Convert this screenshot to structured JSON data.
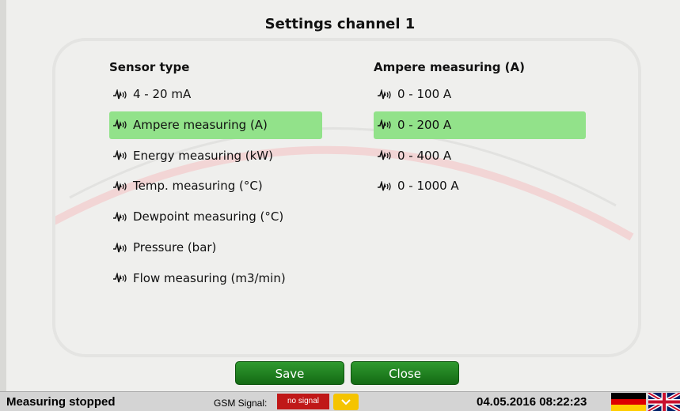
{
  "dialog": {
    "title": "Settings channel 1",
    "sensor_type": {
      "header": "Sensor type",
      "items": [
        {
          "label": "4 - 20 mA",
          "selected": false
        },
        {
          "label": "Ampere measuring (A)",
          "selected": true
        },
        {
          "label": "Energy measuring (kW)",
          "selected": false
        },
        {
          "label": "Temp. measuring (°C)",
          "selected": false
        },
        {
          "label": "Dewpoint measuring (°C)",
          "selected": false
        },
        {
          "label": "Pressure (bar)",
          "selected": false
        },
        {
          "label": "Flow measuring (m3/min)",
          "selected": false
        }
      ]
    },
    "range": {
      "header": "Ampere measuring (A)",
      "items": [
        {
          "label": "0 - 100 A",
          "selected": false
        },
        {
          "label": "0 - 200 A",
          "selected": true
        },
        {
          "label": "0 - 400 A",
          "selected": false
        },
        {
          "label": "0 - 1000 A",
          "selected": false
        }
      ]
    },
    "buttons": {
      "save": "Save",
      "close": "Close"
    }
  },
  "status_bar": {
    "state": "Measuring stopped",
    "gsm_label": "GSM Signal:",
    "gsm_value": "no signal",
    "datetime": "04.05.2016 08:22:23"
  }
}
